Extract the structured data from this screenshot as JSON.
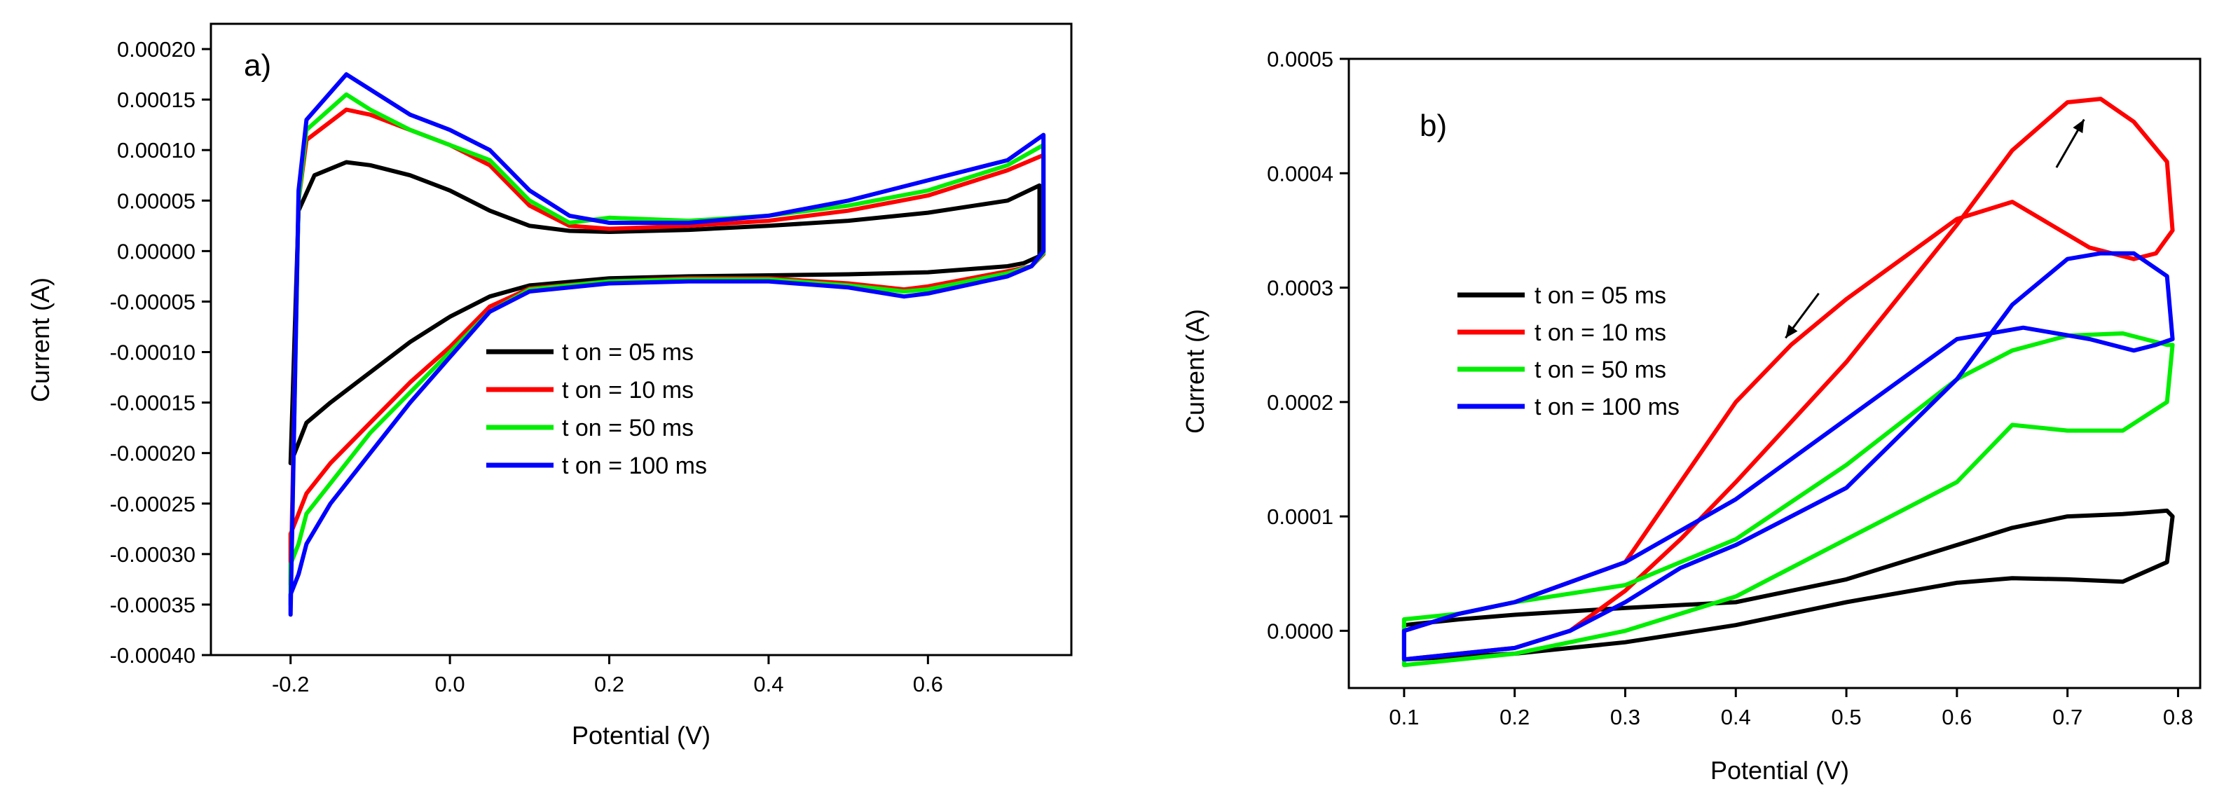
{
  "colors": {
    "t05": "#000000",
    "t10": "#ff0000",
    "t50": "#00ee00",
    "t100": "#0000ff"
  },
  "chart_data": [
    {
      "type": "line",
      "panel_label": "a)",
      "xlabel": "Potential (V)",
      "ylabel": "Current (A)",
      "xlim": [
        -0.3,
        0.78
      ],
      "ylim": [
        -0.0004,
        0.000225
      ],
      "x_ticks": [
        -0.2,
        0.0,
        0.2,
        0.4,
        0.6
      ],
      "x_tick_labels": [
        "-0.2",
        "0.0",
        "0.2",
        "0.4",
        "0.6"
      ],
      "y_ticks": [
        -0.0004,
        -0.00035,
        -0.0003,
        -0.00025,
        -0.0002,
        -0.00015,
        -0.0001,
        -5e-05,
        0.0,
        5e-05,
        0.0001,
        0.00015,
        0.0002
      ],
      "y_tick_labels": [
        "-0.00040",
        "-0.00035",
        "-0.00030",
        "-0.00025",
        "-0.00020",
        "-0.00015",
        "-0.00010",
        "-0.00005",
        "0.00000",
        "0.00005",
        "0.00010",
        "0.00015",
        "0.00020"
      ],
      "legend": [
        "t on = 05 ms",
        "t on = 10 ms",
        "t on = 50 ms",
        "t on = 100 ms"
      ],
      "legend_position": "center-right",
      "series": [
        {
          "name": "t on = 05 ms",
          "color_key": "t05",
          "x": [
            -0.2,
            -0.19,
            -0.17,
            -0.13,
            -0.1,
            -0.05,
            0.0,
            0.05,
            0.1,
            0.15,
            0.2,
            0.3,
            0.4,
            0.5,
            0.6,
            0.7,
            0.74,
            0.74,
            0.72,
            0.7,
            0.6,
            0.5,
            0.4,
            0.3,
            0.2,
            0.1,
            0.05,
            0.0,
            -0.05,
            -0.1,
            -0.15,
            -0.18,
            -0.19,
            -0.2
          ],
          "y": [
            -0.00021,
            4e-05,
            7.5e-05,
            8.8e-05,
            8.5e-05,
            7.5e-05,
            6e-05,
            4e-05,
            2.5e-05,
            2e-05,
            1.9e-05,
            2.1e-05,
            2.5e-05,
            3e-05,
            3.8e-05,
            5e-05,
            6.5e-05,
            -5e-06,
            -1.2e-05,
            -1.5e-05,
            -2.1e-05,
            -2.3e-05,
            -2.4e-05,
            -2.5e-05,
            -2.7e-05,
            -3.4e-05,
            -4.5e-05,
            -6.5e-05,
            -9e-05,
            -0.00012,
            -0.00015,
            -0.00017,
            -0.00019,
            -0.00021
          ]
        },
        {
          "name": "t on = 10 ms",
          "color_key": "t10",
          "x": [
            -0.2,
            -0.19,
            -0.18,
            -0.13,
            -0.1,
            -0.05,
            0.0,
            0.05,
            0.1,
            0.15,
            0.2,
            0.3,
            0.4,
            0.5,
            0.6,
            0.7,
            0.745,
            0.745,
            0.73,
            0.7,
            0.6,
            0.57,
            0.5,
            0.4,
            0.3,
            0.2,
            0.1,
            0.05,
            0.0,
            -0.05,
            -0.1,
            -0.15,
            -0.18,
            -0.19,
            -0.2,
            -0.2
          ],
          "y": [
            -0.00033,
            5e-05,
            0.00011,
            0.00014,
            0.000135,
            0.00012,
            0.000105,
            8.5e-05,
            4.5e-05,
            2.5e-05,
            2.2e-05,
            2.5e-05,
            3e-05,
            4e-05,
            5.5e-05,
            8e-05,
            9.5e-05,
            -3e-06,
            -1.5e-05,
            -2e-05,
            -3.5e-05,
            -3.8e-05,
            -3.2e-05,
            -2.7e-05,
            -2.7e-05,
            -3e-05,
            -3.7e-05,
            -5.5e-05,
            -9.5e-05,
            -0.00013,
            -0.00017,
            -0.00021,
            -0.00024,
            -0.00026,
            -0.00028,
            -0.00033
          ]
        },
        {
          "name": "t on = 50 ms",
          "color_key": "t50",
          "x": [
            -0.2,
            -0.19,
            -0.18,
            -0.13,
            -0.1,
            -0.05,
            0.0,
            0.05,
            0.1,
            0.15,
            0.2,
            0.3,
            0.4,
            0.5,
            0.6,
            0.7,
            0.745,
            0.745,
            0.73,
            0.7,
            0.6,
            0.57,
            0.5,
            0.4,
            0.3,
            0.2,
            0.1,
            0.05,
            0.0,
            -0.05,
            -0.1,
            -0.15,
            -0.18,
            -0.19,
            -0.2,
            -0.2
          ],
          "y": [
            -0.00035,
            5e-05,
            0.00012,
            0.000155,
            0.00014,
            0.00012,
            0.000105,
            9e-05,
            5e-05,
            2.8e-05,
            3.3e-05,
            3e-05,
            3.5e-05,
            4.5e-05,
            6e-05,
            8.5e-05,
            0.000105,
            -2e-06,
            -1.5e-05,
            -2.2e-05,
            -3.8e-05,
            -4e-05,
            -3.4e-05,
            -2.8e-05,
            -2.8e-05,
            -3e-05,
            -3.8e-05,
            -6e-05,
            -0.0001,
            -0.00014,
            -0.00018,
            -0.00023,
            -0.00026,
            -0.00029,
            -0.00031,
            -0.00035
          ]
        },
        {
          "name": "t on = 100 ms",
          "color_key": "t100",
          "x": [
            -0.2,
            -0.19,
            -0.18,
            -0.13,
            -0.1,
            -0.05,
            0.0,
            0.05,
            0.1,
            0.15,
            0.2,
            0.3,
            0.4,
            0.5,
            0.6,
            0.7,
            0.745,
            0.745,
            0.73,
            0.7,
            0.6,
            0.57,
            0.5,
            0.4,
            0.3,
            0.2,
            0.1,
            0.05,
            0.0,
            -0.05,
            -0.1,
            -0.15,
            -0.18,
            -0.19,
            -0.2,
            -0.2
          ],
          "y": [
            -0.00036,
            6e-05,
            0.00013,
            0.000175,
            0.00016,
            0.000135,
            0.00012,
            0.0001,
            6e-05,
            3.5e-05,
            2.8e-05,
            2.8e-05,
            3.5e-05,
            5e-05,
            7e-05,
            9e-05,
            0.000115,
            0.0,
            -1.5e-05,
            -2.5e-05,
            -4.2e-05,
            -4.5e-05,
            -3.6e-05,
            -3e-05,
            -3e-05,
            -3.2e-05,
            -4e-05,
            -6e-05,
            -0.000105,
            -0.00015,
            -0.0002,
            -0.00025,
            -0.00029,
            -0.00032,
            -0.00034,
            -0.00036
          ]
        }
      ]
    },
    {
      "type": "line",
      "panel_label": "b)",
      "xlabel": "Potential (V)",
      "ylabel": "Current (A)",
      "xlim": [
        0.05,
        0.82
      ],
      "ylim": [
        -5e-05,
        0.0005
      ],
      "x_ticks": [
        0.1,
        0.2,
        0.3,
        0.4,
        0.5,
        0.6,
        0.7,
        0.8
      ],
      "x_tick_labels": [
        "0.1",
        "0.2",
        "0.3",
        "0.4",
        "0.5",
        "0.6",
        "0.7",
        "0.8"
      ],
      "y_ticks": [
        0.0,
        0.0001,
        0.0002,
        0.0003,
        0.0004,
        0.0005
      ],
      "y_tick_labels": [
        "0.0000",
        "0.0001",
        "0.0002",
        "0.0003",
        "0.0004",
        "0.0005"
      ],
      "legend": [
        "t on = 05 ms",
        "t on = 10 ms",
        "t on = 50 ms",
        "t on = 100 ms"
      ],
      "legend_position": "center-left",
      "annotations": [
        {
          "type": "arrow",
          "label": "forward-scan-arrow",
          "from": [
            0.69,
            0.000405
          ],
          "to": [
            0.715,
            0.000447
          ]
        },
        {
          "type": "arrow",
          "label": "reverse-scan-arrow",
          "from": [
            0.475,
            0.000295
          ],
          "to": [
            0.445,
            0.000256
          ]
        }
      ],
      "series": [
        {
          "name": "t on = 05 ms",
          "color_key": "t05",
          "x": [
            0.1,
            0.2,
            0.3,
            0.4,
            0.5,
            0.6,
            0.65,
            0.7,
            0.75,
            0.79,
            0.795,
            0.79,
            0.75,
            0.7,
            0.65,
            0.6,
            0.5,
            0.4,
            0.3,
            0.2,
            0.15,
            0.1,
            0.1
          ],
          "y": [
            -2.5e-05,
            -2e-05,
            -1e-05,
            5e-06,
            2.5e-05,
            4.2e-05,
            4.6e-05,
            4.5e-05,
            4.3e-05,
            6e-05,
            0.0001,
            0.000105,
            0.000102,
            0.0001,
            9e-05,
            7.5e-05,
            4.5e-05,
            2.5e-05,
            2e-05,
            1.4e-05,
            1e-05,
            5e-06,
            -2.5e-05
          ]
        },
        {
          "name": "t on = 10 ms",
          "color_key": "t10",
          "x": [
            0.1,
            0.2,
            0.25,
            0.3,
            0.35,
            0.4,
            0.5,
            0.6,
            0.65,
            0.7,
            0.73,
            0.76,
            0.79,
            0.795,
            0.78,
            0.76,
            0.72,
            0.65,
            0.6,
            0.5,
            0.45,
            0.4,
            0.35,
            0.3,
            0.2,
            0.15,
            0.1,
            0.1
          ],
          "y": [
            -2.5e-05,
            -1.5e-05,
            0.0,
            3.5e-05,
            8e-05,
            0.00013,
            0.000235,
            0.000355,
            0.00042,
            0.000462,
            0.000465,
            0.000445,
            0.00041,
            0.00035,
            0.00033,
            0.000325,
            0.000335,
            0.000375,
            0.00036,
            0.00029,
            0.00025,
            0.0002,
            0.00013,
            6e-05,
            2.5e-05,
            1.5e-05,
            0.0,
            -2.5e-05
          ]
        },
        {
          "name": "t on = 50 ms",
          "color_key": "t50",
          "x": [
            0.1,
            0.2,
            0.3,
            0.4,
            0.5,
            0.6,
            0.65,
            0.7,
            0.75,
            0.79,
            0.795,
            0.79,
            0.75,
            0.7,
            0.65,
            0.6,
            0.5,
            0.4,
            0.3,
            0.2,
            0.15,
            0.1,
            0.1
          ],
          "y": [
            -3e-05,
            -2e-05,
            0.0,
            3e-05,
            8e-05,
            0.00013,
            0.00018,
            0.000175,
            0.000175,
            0.0002,
            0.00025,
            0.00025,
            0.00026,
            0.000258,
            0.000245,
            0.00022,
            0.000145,
            8e-05,
            4e-05,
            2.5e-05,
            1.5e-05,
            1e-05,
            -3e-05
          ]
        },
        {
          "name": "t on = 100 ms",
          "color_key": "t100",
          "x": [
            0.1,
            0.2,
            0.25,
            0.3,
            0.35,
            0.4,
            0.5,
            0.6,
            0.65,
            0.7,
            0.73,
            0.76,
            0.79,
            0.795,
            0.78,
            0.76,
            0.72,
            0.66,
            0.6,
            0.5,
            0.4,
            0.3,
            0.2,
            0.15,
            0.1,
            0.1
          ],
          "y": [
            -2.5e-05,
            -1.5e-05,
            0.0,
            2.5e-05,
            5.5e-05,
            7.5e-05,
            0.000125,
            0.00022,
            0.000285,
            0.000325,
            0.00033,
            0.00033,
            0.00031,
            0.000255,
            0.00025,
            0.000245,
            0.000255,
            0.000265,
            0.000255,
            0.000185,
            0.000115,
            6e-05,
            2.5e-05,
            1.5e-05,
            0.0,
            -2.5e-05
          ]
        }
      ]
    }
  ]
}
